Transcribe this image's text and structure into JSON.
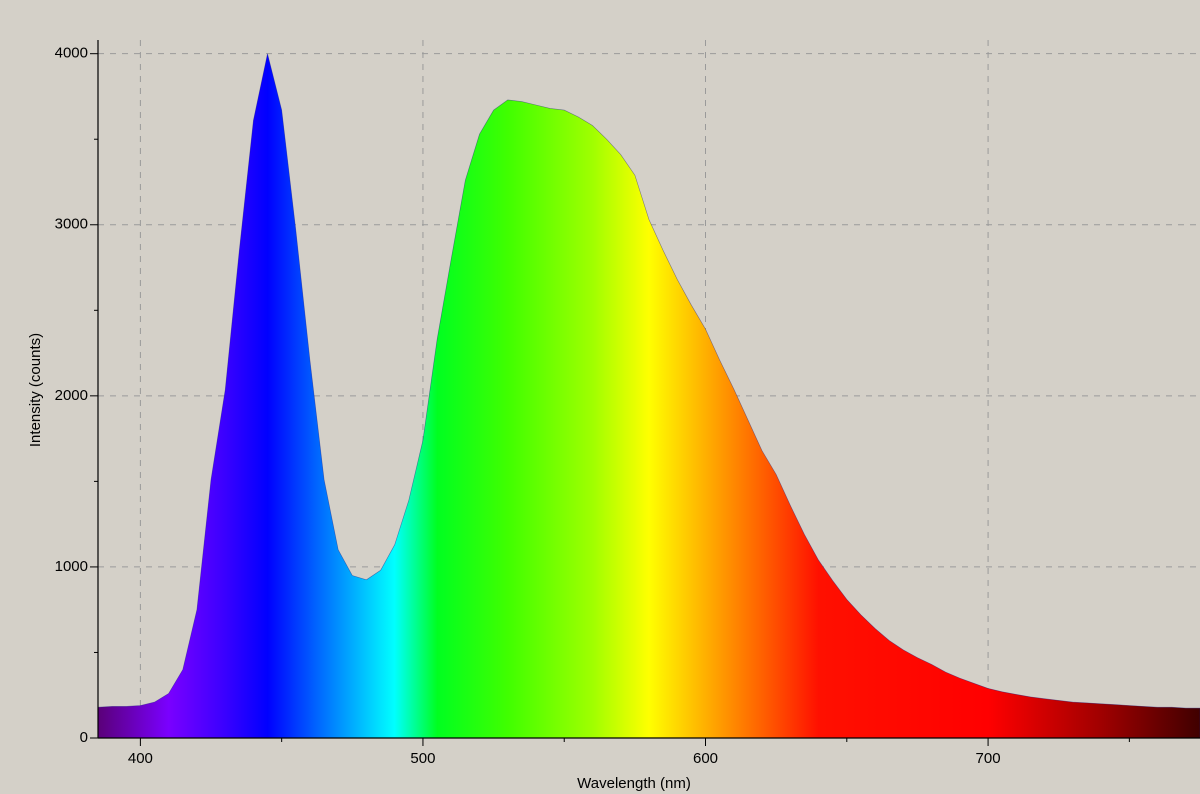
{
  "chart_data": {
    "type": "area",
    "x_label": "Wavelength (nm)",
    "y_label": "Intensity (counts)",
    "x": [
      385,
      390,
      395,
      400,
      405,
      410,
      415,
      420,
      425,
      430,
      435,
      440,
      445,
      450,
      455,
      460,
      465,
      470,
      475,
      480,
      485,
      490,
      495,
      500,
      505,
      510,
      515,
      520,
      525,
      530,
      535,
      540,
      545,
      550,
      555,
      560,
      565,
      570,
      575,
      580,
      585,
      590,
      595,
      600,
      605,
      610,
      615,
      620,
      625,
      630,
      635,
      640,
      645,
      650,
      655,
      660,
      665,
      670,
      675,
      680,
      685,
      690,
      695,
      700,
      705,
      710,
      715,
      720,
      725,
      730,
      735,
      740,
      745,
      750,
      755,
      760,
      765,
      770,
      775
    ],
    "values": [
      180,
      185,
      185,
      190,
      210,
      260,
      400,
      750,
      1510,
      2035,
      2850,
      3610,
      4000,
      3670,
      2970,
      2210,
      1510,
      1100,
      950,
      925,
      980,
      1130,
      1390,
      1740,
      2330,
      2800,
      3260,
      3530,
      3670,
      3730,
      3720,
      3700,
      3680,
      3670,
      3630,
      3580,
      3500,
      3410,
      3290,
      3030,
      2850,
      2680,
      2530,
      2390,
      2210,
      2040,
      1860,
      1680,
      1540,
      1360,
      1190,
      1040,
      920,
      810,
      720,
      640,
      570,
      515,
      470,
      430,
      385,
      350,
      320,
      290,
      270,
      255,
      240,
      230,
      220,
      210,
      205,
      200,
      195,
      190,
      185,
      180,
      180,
      175,
      175
    ],
    "xlim": [
      385,
      775
    ],
    "ylim": [
      0,
      4080
    ],
    "xticks": [
      400,
      500,
      600,
      700
    ],
    "yticks": [
      0,
      1000,
      2000,
      3000,
      4000
    ],
    "xminor": [
      450,
      550,
      650,
      750
    ],
    "yminor": [
      500,
      1500,
      2500,
      3500
    ],
    "grid": true
  }
}
